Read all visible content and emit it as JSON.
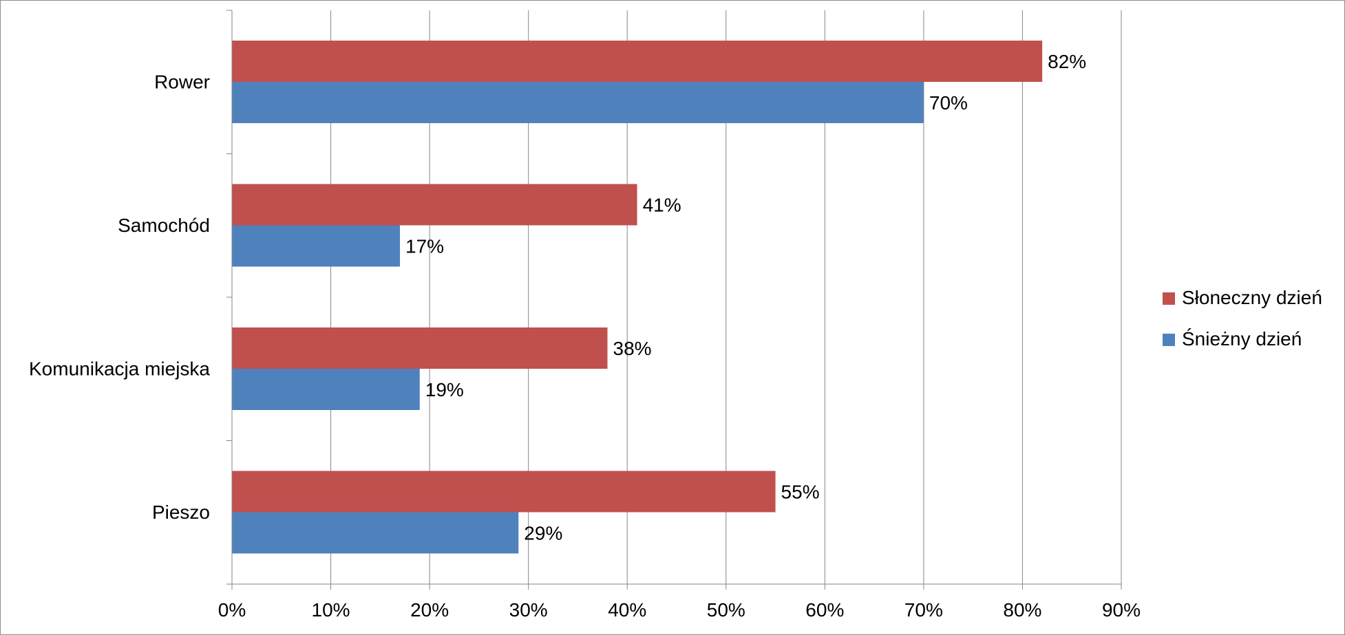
{
  "chart_data": {
    "type": "bar",
    "orientation": "horizontal",
    "categories": [
      "Rower",
      "Samochód",
      "Komunikacja miejska",
      "Pieszo"
    ],
    "series": [
      {
        "name": "Słoneczny dzień",
        "values": [
          82,
          41,
          38,
          55
        ],
        "color": "#c0504d"
      },
      {
        "name": "Śnieżny dzień",
        "values": [
          70,
          17,
          19,
          29
        ],
        "color": "#4f81bd"
      }
    ],
    "value_unit": "%",
    "xlim": [
      0,
      90
    ],
    "x_ticks": [
      "0%",
      "10%",
      "20%",
      "30%",
      "40%",
      "50%",
      "60%",
      "70%",
      "80%",
      "90%"
    ],
    "grid": "vertical",
    "legend_position": "right",
    "data_labels": [
      [
        "82%",
        "70%"
      ],
      [
        "41%",
        "17%"
      ],
      [
        "38%",
        "19%"
      ],
      [
        "55%",
        "29%"
      ]
    ]
  }
}
